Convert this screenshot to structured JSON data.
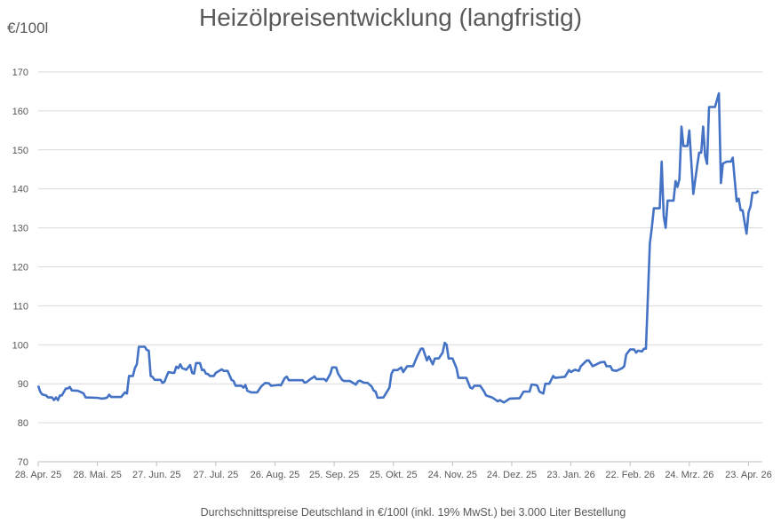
{
  "chart_data": {
    "type": "line",
    "title": "Heizölpreisentwicklung (langfristig)",
    "ylabel": "€/100l",
    "xlabel": "Durchschnittspreise Deutschland in €/100l (inkl. 19% MwSt.) bei 3.000 Liter Bestellung",
    "ylim": [
      70,
      170
    ],
    "yticks": [
      70,
      80,
      90,
      100,
      110,
      120,
      130,
      140,
      150,
      160,
      170
    ],
    "xlim": [
      "2025-04-28",
      "2026-04-30"
    ],
    "xticks": [
      {
        "date": "2025-04-28",
        "label": "28. Apr. 25"
      },
      {
        "date": "2025-05-28",
        "label": "28. Mai. 25"
      },
      {
        "date": "2025-06-27",
        "label": "27. Jun. 25"
      },
      {
        "date": "2025-07-27",
        "label": "27. Jul. 25"
      },
      {
        "date": "2025-08-26",
        "label": "26. Aug. 25"
      },
      {
        "date": "2025-09-25",
        "label": "25. Sep. 25"
      },
      {
        "date": "2025-10-25",
        "label": "25. Okt. 25"
      },
      {
        "date": "2025-11-24",
        "label": "24. Nov. 25"
      },
      {
        "date": "2025-12-24",
        "label": "24. Dez. 25"
      },
      {
        "date": "2026-01-23",
        "label": "23. Jan. 26"
      },
      {
        "date": "2026-02-22",
        "label": "22. Feb. 26"
      },
      {
        "date": "2026-03-24",
        "label": "24. Mrz. 26"
      },
      {
        "date": "2026-04-23",
        "label": "23. Apr. 26"
      }
    ],
    "grid": true,
    "legend": "none",
    "colors": {
      "line": "#4472C4",
      "grid": "#D9D9D9",
      "text": "#595959"
    },
    "series": [
      {
        "points": [
          [
            "2025-04-28",
            89.5
          ],
          [
            "2025-04-29",
            88
          ],
          [
            "2025-04-30",
            87.3
          ],
          [
            "2025-05-02",
            87
          ],
          [
            "2025-05-03",
            86.5
          ],
          [
            "2025-05-05",
            86.5
          ],
          [
            "2025-05-06",
            85.8
          ],
          [
            "2025-05-07",
            86.5
          ],
          [
            "2025-05-08",
            85.8
          ],
          [
            "2025-05-09",
            87
          ],
          [
            "2025-05-10",
            87
          ],
          [
            "2025-05-12",
            88.8
          ],
          [
            "2025-05-13",
            88.8
          ],
          [
            "2025-05-14",
            89.2
          ],
          [
            "2025-05-15",
            88.3
          ],
          [
            "2025-05-18",
            88.2
          ],
          [
            "2025-05-20",
            87.8
          ],
          [
            "2025-05-21",
            87.5
          ],
          [
            "2025-05-22",
            86.5
          ],
          [
            "2025-05-28",
            86.4
          ],
          [
            "2025-05-30",
            86.2
          ],
          [
            "2025-06-01",
            86.3
          ],
          [
            "2025-06-02",
            86.5
          ],
          [
            "2025-06-03",
            87.2
          ],
          [
            "2025-06-04",
            86.6
          ],
          [
            "2025-06-09",
            86.6
          ],
          [
            "2025-06-11",
            87.8
          ],
          [
            "2025-06-12",
            87.5
          ],
          [
            "2025-06-13",
            92
          ],
          [
            "2025-06-15",
            92
          ],
          [
            "2025-06-16",
            94
          ],
          [
            "2025-06-17",
            95
          ],
          [
            "2025-06-18",
            99.5
          ],
          [
            "2025-06-21",
            99.5
          ],
          [
            "2025-06-22",
            98.7
          ],
          [
            "2025-06-23",
            98.5
          ],
          [
            "2025-06-24",
            92
          ],
          [
            "2025-06-25",
            91.7
          ],
          [
            "2025-06-26",
            91
          ],
          [
            "2025-06-29",
            91
          ],
          [
            "2025-06-30",
            90.2
          ],
          [
            "2025-07-01",
            90.5
          ],
          [
            "2025-07-02",
            91.8
          ],
          [
            "2025-07-03",
            93
          ],
          [
            "2025-07-05",
            92.8
          ],
          [
            "2025-07-06",
            92.8
          ],
          [
            "2025-07-07",
            94.4
          ],
          [
            "2025-07-08",
            94
          ],
          [
            "2025-07-09",
            95
          ],
          [
            "2025-07-10",
            94
          ],
          [
            "2025-07-12",
            93.6
          ],
          [
            "2025-07-14",
            94.8
          ],
          [
            "2025-07-15",
            92.8
          ],
          [
            "2025-07-16",
            92.6
          ],
          [
            "2025-07-17",
            95.3
          ],
          [
            "2025-07-19",
            95.3
          ],
          [
            "2025-07-20",
            93.5
          ],
          [
            "2025-07-21",
            93.6
          ],
          [
            "2025-07-22",
            92.6
          ],
          [
            "2025-07-23",
            92.5
          ],
          [
            "2025-07-24",
            92
          ],
          [
            "2025-07-26",
            92
          ],
          [
            "2025-07-27",
            92.8
          ],
          [
            "2025-07-30",
            93.7
          ],
          [
            "2025-07-31",
            93.3
          ],
          [
            "2025-08-02",
            93.3
          ],
          [
            "2025-08-04",
            91
          ],
          [
            "2025-08-05",
            90.7
          ],
          [
            "2025-08-06",
            89.5
          ],
          [
            "2025-08-09",
            89.5
          ],
          [
            "2025-08-10",
            89
          ],
          [
            "2025-08-11",
            89.7
          ],
          [
            "2025-08-12",
            88.2
          ],
          [
            "2025-08-14",
            87.8
          ],
          [
            "2025-08-17",
            87.8
          ],
          [
            "2025-08-19",
            89.3
          ],
          [
            "2025-08-21",
            90.2
          ],
          [
            "2025-08-23",
            90.1
          ],
          [
            "2025-08-24",
            89.5
          ],
          [
            "2025-08-26",
            89.6
          ],
          [
            "2025-08-28",
            89.7
          ],
          [
            "2025-08-29",
            89.6
          ],
          [
            "2025-08-31",
            91.5
          ],
          [
            "2025-09-01",
            91.8
          ],
          [
            "2025-09-02",
            90.9
          ],
          [
            "2025-09-09",
            90.9
          ],
          [
            "2025-09-10",
            90.3
          ],
          [
            "2025-09-11",
            90.4
          ],
          [
            "2025-09-13",
            91.2
          ],
          [
            "2025-09-15",
            91.9
          ],
          [
            "2025-09-16",
            91.2
          ],
          [
            "2025-09-20",
            91.2
          ],
          [
            "2025-09-21",
            90.7
          ],
          [
            "2025-09-23",
            92.5
          ],
          [
            "2025-09-24",
            94.2
          ],
          [
            "2025-09-26",
            94.2
          ],
          [
            "2025-09-27",
            92.6
          ],
          [
            "2025-09-29",
            91
          ],
          [
            "2025-09-30",
            90.7
          ],
          [
            "2025-10-03",
            90.7
          ],
          [
            "2025-10-06",
            89.8
          ],
          [
            "2025-10-07",
            90.6
          ],
          [
            "2025-10-08",
            90.8
          ],
          [
            "2025-10-10",
            90.3
          ],
          [
            "2025-10-12",
            90.2
          ],
          [
            "2025-10-14",
            89.3
          ],
          [
            "2025-10-15",
            88.3
          ],
          [
            "2025-10-16",
            88
          ],
          [
            "2025-10-17",
            86.4
          ],
          [
            "2025-10-20",
            86.5
          ],
          [
            "2025-10-23",
            89
          ],
          [
            "2025-10-24",
            92.5
          ],
          [
            "2025-10-25",
            93.5
          ],
          [
            "2025-10-27",
            93.5
          ],
          [
            "2025-10-29",
            94.2
          ],
          [
            "2025-10-30",
            93
          ],
          [
            "2025-11-01",
            94.5
          ],
          [
            "2025-11-04",
            94.5
          ],
          [
            "2025-11-06",
            97
          ],
          [
            "2025-11-08",
            99
          ],
          [
            "2025-11-09",
            99
          ],
          [
            "2025-11-11",
            96
          ],
          [
            "2025-11-12",
            97
          ],
          [
            "2025-11-14",
            95
          ],
          [
            "2025-11-15",
            96.5
          ],
          [
            "2025-11-17",
            96.5
          ],
          [
            "2025-11-19",
            98
          ],
          [
            "2025-11-20",
            100.5
          ],
          [
            "2025-11-21",
            100
          ],
          [
            "2025-11-22",
            96.5
          ],
          [
            "2025-11-24",
            96.5
          ],
          [
            "2025-11-26",
            94
          ],
          [
            "2025-11-27",
            91.5
          ],
          [
            "2025-11-29",
            91.5
          ],
          [
            "2025-12-01",
            91.5
          ],
          [
            "2025-12-03",
            89
          ],
          [
            "2025-12-04",
            88.8
          ],
          [
            "2025-12-05",
            89.5
          ],
          [
            "2025-12-08",
            89.5
          ],
          [
            "2025-12-10",
            88
          ],
          [
            "2025-12-11",
            87
          ],
          [
            "2025-12-14",
            86.5
          ],
          [
            "2025-12-17",
            85.5
          ],
          [
            "2025-12-18",
            85.8
          ],
          [
            "2025-12-20",
            85.2
          ],
          [
            "2025-12-23",
            86.2
          ],
          [
            "2025-12-28",
            86.3
          ],
          [
            "2025-12-30",
            88
          ],
          [
            "2026-01-02",
            88
          ],
          [
            "2026-01-03",
            89.8
          ],
          [
            "2026-01-05",
            89.7
          ],
          [
            "2026-01-06",
            89.5
          ],
          [
            "2026-01-07",
            88
          ],
          [
            "2026-01-09",
            87.5
          ],
          [
            "2026-01-10",
            90
          ],
          [
            "2026-01-12",
            90
          ],
          [
            "2026-01-14",
            92
          ],
          [
            "2026-01-15",
            91.5
          ],
          [
            "2026-01-20",
            91.8
          ],
          [
            "2026-01-22",
            93.5
          ],
          [
            "2026-01-23",
            93
          ],
          [
            "2026-01-25",
            93.6
          ],
          [
            "2026-01-27",
            93.3
          ],
          [
            "2026-01-28",
            94.5
          ],
          [
            "2026-01-31",
            96
          ],
          [
            "2026-02-01",
            96
          ],
          [
            "2026-02-03",
            94.5
          ],
          [
            "2026-02-07",
            95.5
          ],
          [
            "2026-02-09",
            95.6
          ],
          [
            "2026-02-10",
            94.5
          ],
          [
            "2026-02-12",
            94.5
          ],
          [
            "2026-02-13",
            93.5
          ],
          [
            "2026-02-15",
            93.3
          ],
          [
            "2026-02-18",
            94
          ],
          [
            "2026-02-19",
            94.5
          ],
          [
            "2026-02-20",
            97.5
          ],
          [
            "2026-02-22",
            98.8
          ],
          [
            "2026-02-24",
            98.8
          ],
          [
            "2026-02-25",
            98
          ],
          [
            "2026-02-26",
            98.5
          ],
          [
            "2026-02-28",
            98.3
          ],
          [
            "2026-03-01",
            99
          ],
          [
            "2026-03-02",
            99
          ],
          [
            "2026-03-04",
            126
          ],
          [
            "2026-03-05",
            130
          ],
          [
            "2026-03-06",
            135
          ],
          [
            "2026-03-09",
            135
          ],
          [
            "2026-03-10",
            147
          ],
          [
            "2026-03-11",
            133
          ],
          [
            "2026-03-12",
            130
          ],
          [
            "2026-03-13",
            137
          ],
          [
            "2026-03-16",
            137
          ],
          [
            "2026-03-17",
            142
          ],
          [
            "2026-03-18",
            140.5
          ],
          [
            "2026-03-19",
            142.5
          ],
          [
            "2026-03-20",
            156
          ],
          [
            "2026-03-21",
            151
          ],
          [
            "2026-03-23",
            151
          ],
          [
            "2026-03-24",
            155
          ],
          [
            "2026-03-26",
            138.7
          ],
          [
            "2026-03-28",
            146
          ],
          [
            "2026-03-29",
            149.3
          ],
          [
            "2026-03-30",
            149.3
          ],
          [
            "2026-03-31",
            156
          ],
          [
            "2026-04-01",
            148.5
          ],
          [
            "2026-04-02",
            146.4
          ],
          [
            "2026-04-03",
            161
          ],
          [
            "2026-04-06",
            161
          ],
          [
            "2026-04-08",
            164.5
          ],
          [
            "2026-04-09",
            141.5
          ],
          [
            "2026-04-10",
            146.5
          ],
          [
            "2026-04-12",
            147
          ],
          [
            "2026-04-14",
            147
          ],
          [
            "2026-04-15",
            148
          ],
          [
            "2026-04-17",
            136.8
          ],
          [
            "2026-04-18",
            137.5
          ],
          [
            "2026-04-19",
            134.5
          ],
          [
            "2026-04-20",
            134.5
          ],
          [
            "2026-04-22",
            128.5
          ],
          [
            "2026-04-23",
            134
          ],
          [
            "2026-04-24",
            135.5
          ],
          [
            "2026-04-25",
            139
          ],
          [
            "2026-04-27",
            139
          ],
          [
            "2026-04-28",
            139.5
          ]
        ]
      }
    ]
  }
}
